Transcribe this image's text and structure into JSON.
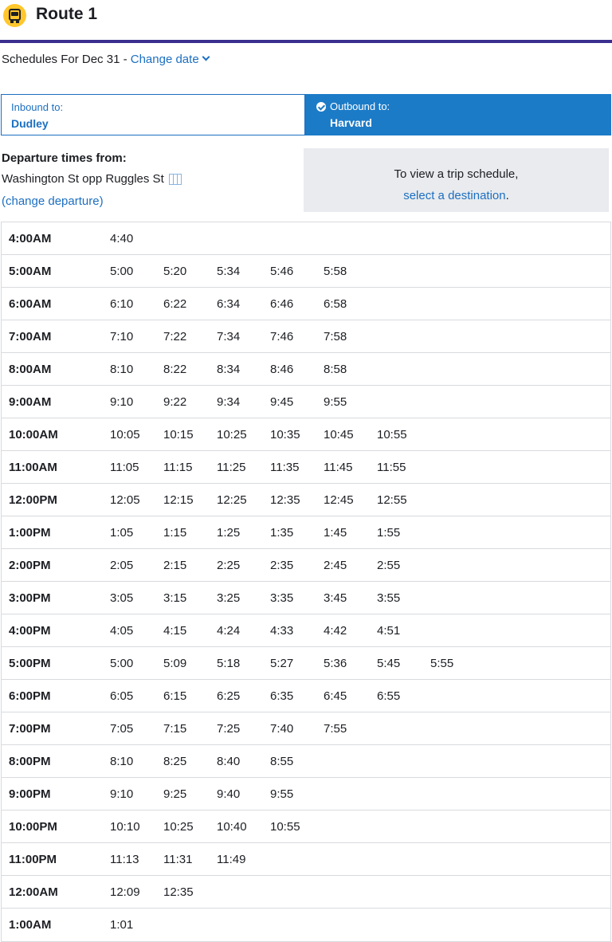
{
  "header": {
    "title": "Route 1",
    "icon": "bus-icon",
    "accent": "#3a2f8f"
  },
  "date": {
    "prefix": "Schedules For Dec 31 - ",
    "change_label": "Change date"
  },
  "directions": {
    "inbound": {
      "label": "Inbound to:",
      "name": "Dudley"
    },
    "outbound": {
      "label": "Outbound to:",
      "name": "Harvard",
      "selected": true
    }
  },
  "departure": {
    "heading": "Departure times from:",
    "stop": "Washington St opp Ruggles St",
    "change_label": "(change departure)"
  },
  "trip": {
    "line1": "To view a trip schedule,",
    "link": "select a destination",
    "suffix": "."
  },
  "schedule": [
    {
      "hour": "4:00AM",
      "times": [
        "4:40"
      ]
    },
    {
      "hour": "5:00AM",
      "times": [
        "5:00",
        "5:20",
        "5:34",
        "5:46",
        "5:58"
      ]
    },
    {
      "hour": "6:00AM",
      "times": [
        "6:10",
        "6:22",
        "6:34",
        "6:46",
        "6:58"
      ]
    },
    {
      "hour": "7:00AM",
      "times": [
        "7:10",
        "7:22",
        "7:34",
        "7:46",
        "7:58"
      ]
    },
    {
      "hour": "8:00AM",
      "times": [
        "8:10",
        "8:22",
        "8:34",
        "8:46",
        "8:58"
      ]
    },
    {
      "hour": "9:00AM",
      "times": [
        "9:10",
        "9:22",
        "9:34",
        "9:45",
        "9:55"
      ]
    },
    {
      "hour": "10:00AM",
      "times": [
        "10:05",
        "10:15",
        "10:25",
        "10:35",
        "10:45",
        "10:55"
      ]
    },
    {
      "hour": "11:00AM",
      "times": [
        "11:05",
        "11:15",
        "11:25",
        "11:35",
        "11:45",
        "11:55"
      ]
    },
    {
      "hour": "12:00PM",
      "times": [
        "12:05",
        "12:15",
        "12:25",
        "12:35",
        "12:45",
        "12:55"
      ]
    },
    {
      "hour": "1:00PM",
      "times": [
        "1:05",
        "1:15",
        "1:25",
        "1:35",
        "1:45",
        "1:55"
      ]
    },
    {
      "hour": "2:00PM",
      "times": [
        "2:05",
        "2:15",
        "2:25",
        "2:35",
        "2:45",
        "2:55"
      ]
    },
    {
      "hour": "3:00PM",
      "times": [
        "3:05",
        "3:15",
        "3:25",
        "3:35",
        "3:45",
        "3:55"
      ]
    },
    {
      "hour": "4:00PM",
      "times": [
        "4:05",
        "4:15",
        "4:24",
        "4:33",
        "4:42",
        "4:51"
      ]
    },
    {
      "hour": "5:00PM",
      "times": [
        "5:00",
        "5:09",
        "5:18",
        "5:27",
        "5:36",
        "5:45",
        "5:55"
      ]
    },
    {
      "hour": "6:00PM",
      "times": [
        "6:05",
        "6:15",
        "6:25",
        "6:35",
        "6:45",
        "6:55"
      ]
    },
    {
      "hour": "7:00PM",
      "times": [
        "7:05",
        "7:15",
        "7:25",
        "7:40",
        "7:55"
      ]
    },
    {
      "hour": "8:00PM",
      "times": [
        "8:10",
        "8:25",
        "8:40",
        "8:55"
      ]
    },
    {
      "hour": "9:00PM",
      "times": [
        "9:10",
        "9:25",
        "9:40",
        "9:55"
      ]
    },
    {
      "hour": "10:00PM",
      "times": [
        "10:10",
        "10:25",
        "10:40",
        "10:55"
      ]
    },
    {
      "hour": "11:00PM",
      "times": [
        "11:13",
        "11:31",
        "11:49"
      ]
    },
    {
      "hour": "12:00AM",
      "times": [
        "12:09",
        "12:35"
      ]
    },
    {
      "hour": "1:00AM",
      "times": [
        "1:01"
      ]
    }
  ]
}
